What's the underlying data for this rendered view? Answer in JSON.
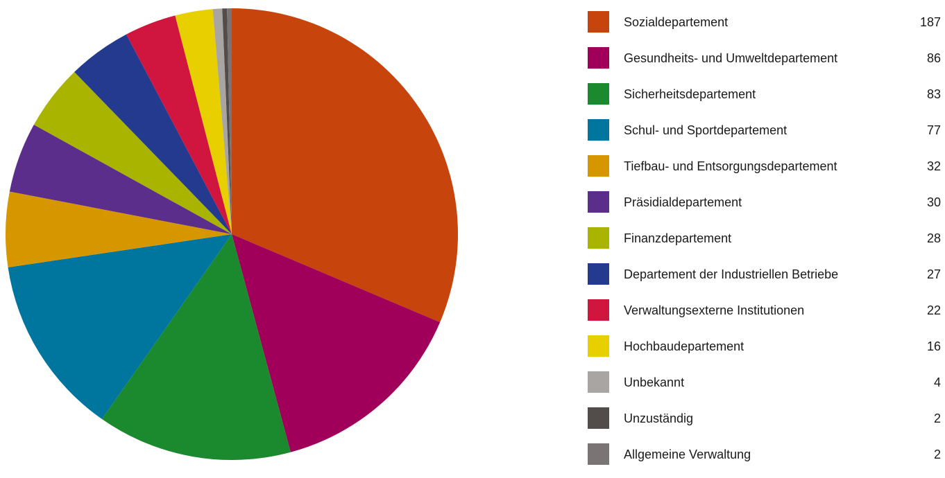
{
  "chart_data": {
    "type": "pie",
    "categories": [
      "Sozialdepartement",
      "Gesundheits- und Umweltdepartement",
      "Sicherheitsdepartement",
      "Schul- und Sportdepartement",
      "Tiefbau- und Entsorgungsdepartement",
      "Präsidialdepartement",
      "Finanzdepartement",
      "Departement der Industriellen Betriebe",
      "Verwaltungsexterne Institutionen",
      "Hochbaudepartement",
      "Unbekannt",
      "Unzuständig",
      "Allgemeine Verwaltung"
    ],
    "values": [
      187,
      86,
      83,
      77,
      32,
      30,
      28,
      27,
      22,
      16,
      4,
      2,
      2
    ],
    "colors": [
      "#c7440d",
      "#a0005a",
      "#1b8a2f",
      "#00769e",
      "#d69600",
      "#5b2e8c",
      "#a8b400",
      "#233a8f",
      "#d0163f",
      "#e8d000",
      "#a9a5a3",
      "#524c4b",
      "#7a7574"
    ],
    "legend_position": "right"
  },
  "legend": [
    {
      "label": "Sozialdepartement",
      "value": "187"
    },
    {
      "label": "Gesundheits- und Umweltdepartement",
      "value": "86"
    },
    {
      "label": "Sicherheitsdepartement",
      "value": "83"
    },
    {
      "label": "Schul- und Sportdepartement",
      "value": "77"
    },
    {
      "label": "Tiefbau- und Entsorgungsdepartement",
      "value": "32"
    },
    {
      "label": "Präsidialdepartement",
      "value": "30"
    },
    {
      "label": "Finanzdepartement",
      "value": "28"
    },
    {
      "label": "Departement der Industriellen Betriebe",
      "value": "27"
    },
    {
      "label": "Verwaltungsexterne Institutionen",
      "value": "22"
    },
    {
      "label": "Hochbaudepartement",
      "value": "16"
    },
    {
      "label": "Unbekannt",
      "value": "4"
    },
    {
      "label": "Unzuständig",
      "value": "2"
    },
    {
      "label": "Allgemeine Verwaltung",
      "value": "2"
    }
  ]
}
